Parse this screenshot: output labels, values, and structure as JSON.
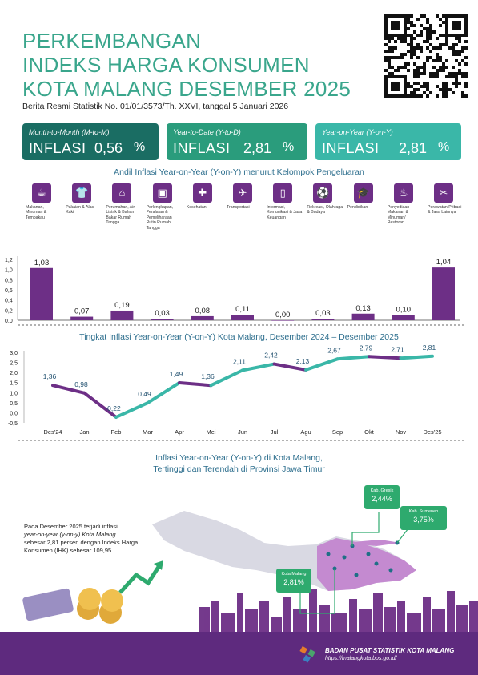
{
  "header": {
    "title_lines": [
      "PERKEMBANGAN",
      "INDEKS HARGA KONSUMEN",
      "KOTA MALANG DESEMBER 2025"
    ],
    "subtitle": "Berita Resmi Statistik No. 01/01/3573/Th. XXVI, tanggal 5 Januari 2026"
  },
  "cards": [
    {
      "label": "Month-to-Month (M-to-M)",
      "word": "INFLASI",
      "value": "0,56",
      "unit": "%",
      "color": "#1a6d63"
    },
    {
      "label": "Year-to-Date (Y-to-D)",
      "word": "INFLASI",
      "value": "2,81",
      "unit": "%",
      "color": "#2a9c7c"
    },
    {
      "label": "Year-on-Year (Y-on-Y)",
      "word": "INFLASI",
      "value": "2,81",
      "unit": "%",
      "color": "#3ab7a8"
    }
  ],
  "section_titles": {
    "andil": "Andil Inflasi Year-on-Year (Y-on-Y) menurut Kelompok Pengeluaran",
    "tingkat": "Tingkat Inflasi Year-on-Year (Y-on-Y) Kota Malang, Desember 2024 – Desember 2025",
    "map_line1": "Inflasi Year-on-Year (Y-on-Y) di Kota Malang,",
    "map_line2": "Tertinggi dan Terendah di Provinsi Jawa Timur"
  },
  "categories": [
    {
      "label": "Makanan, Minuman & Tembakau",
      "icon": "food-icon",
      "glyph": "☕"
    },
    {
      "label": "Pakaian & Alas Kaki",
      "icon": "clothing-icon",
      "glyph": "👕"
    },
    {
      "label": "Perumahan, Air, Listrik & Bahan Bakar Rumah Tangga",
      "icon": "house-icon",
      "glyph": "⌂"
    },
    {
      "label": "Perlengkapan, Peralatan & Pemeliharaan Rutin Rumah Tangga",
      "icon": "household-icon",
      "glyph": "▣"
    },
    {
      "label": "Kesehatan",
      "icon": "health-icon",
      "glyph": "✚"
    },
    {
      "label": "Transportasi",
      "icon": "plane-icon",
      "glyph": "✈"
    },
    {
      "label": "Informasi, Komunikasi & Jasa Keuangan",
      "icon": "phone-icon",
      "glyph": "▯"
    },
    {
      "label": "Rekreasi, Olahraga & Budaya",
      "icon": "sport-icon",
      "glyph": "⚽"
    },
    {
      "label": "Pendidikan",
      "icon": "education-icon",
      "glyph": "🎓"
    },
    {
      "label": "Penyediaan Makanan & Minuman/ Restoran",
      "icon": "restaurant-icon",
      "glyph": "♨"
    },
    {
      "label": "Perawatan Pribadi & Jasa Lainnya",
      "icon": "personal-care-icon",
      "glyph": "✂"
    }
  ],
  "chart_data": [
    {
      "type": "bar",
      "title": "Andil Inflasi Year-on-Year (Y-on-Y) menurut Kelompok Pengeluaran",
      "categories": [
        "Makanan, Minuman & Tembakau",
        "Pakaian & Alas Kaki",
        "Perumahan, Air, Listrik & Bahan Bakar Rumah Tangga",
        "Perlengkapan, Peralatan & Pemeliharaan Rutin Rumah Tangga",
        "Kesehatan",
        "Transportasi",
        "Informasi, Komunikasi & Jasa Keuangan",
        "Rekreasi, Olahraga & Budaya",
        "Pendidikan",
        "Penyediaan Makanan & Minuman/ Restoran",
        "Perawatan Pribadi & Jasa Lainnya"
      ],
      "values": [
        1.03,
        0.07,
        0.19,
        0.03,
        0.08,
        0.11,
        0.0,
        0.03,
        0.13,
        0.1,
        1.04
      ],
      "labels": [
        "1,03",
        "0,07",
        "0,19",
        "0,03",
        "0,08",
        "0,11",
        "0,00",
        "0,03",
        "0,13",
        "0,10",
        "1,04"
      ],
      "yticks": [
        "0,0",
        "0,2",
        "0,4",
        "0,6",
        "0,8",
        "1,0",
        "1,2"
      ],
      "ylim": [
        0,
        1.2
      ],
      "color": "#6d2f86"
    },
    {
      "type": "line",
      "title": "Tingkat Inflasi Year-on-Year (Y-on-Y) Kota Malang, Desember 2024 – Desember 2025",
      "x": [
        "Des'24",
        "Jan",
        "Feb",
        "Mar",
        "Apr",
        "Mei",
        "Jun",
        "Jul",
        "Agu",
        "Sep",
        "Okt",
        "Nov",
        "Des'25"
      ],
      "values": [
        1.36,
        0.98,
        -0.22,
        0.49,
        1.49,
        1.36,
        2.11,
        2.42,
        2.13,
        2.67,
        2.79,
        2.71,
        2.81
      ],
      "labels": [
        "1,36",
        "0,98",
        "-0,22",
        "0,49",
        "1,49",
        "1,36",
        "2,11",
        "2,42",
        "2,13",
        "2,67",
        "2,79",
        "2,71",
        "2,81"
      ],
      "yticks": [
        "-0,5",
        "0,0",
        "0,5",
        "1,0",
        "1,5",
        "2,0",
        "2,5",
        "3,0"
      ],
      "ylim": [
        -0.5,
        3.0
      ],
      "rising_color": "#3ab7a8",
      "falling_color": "#6d2f86"
    }
  ],
  "map": {
    "description_lines": [
      "Pada Desember 2025 terjadi inflasi",
      "year-on-year (y-on-y) Kota Malang",
      "sebesar 2,81 persen dengan Indeks Harga",
      "Konsumen (IHK) sebesar 109,95"
    ],
    "callouts": [
      {
        "name": "Kab. Gresik",
        "value": "2,44%"
      },
      {
        "name": "Kab. Sumenep",
        "value": "3,75%"
      },
      {
        "name": "Kota Malang",
        "value": "2,81%"
      }
    ]
  },
  "footer": {
    "org": "BADAN PUSAT STATISTIK KOTA MALANG",
    "url": "https://malangkota.bps.go.id/"
  }
}
